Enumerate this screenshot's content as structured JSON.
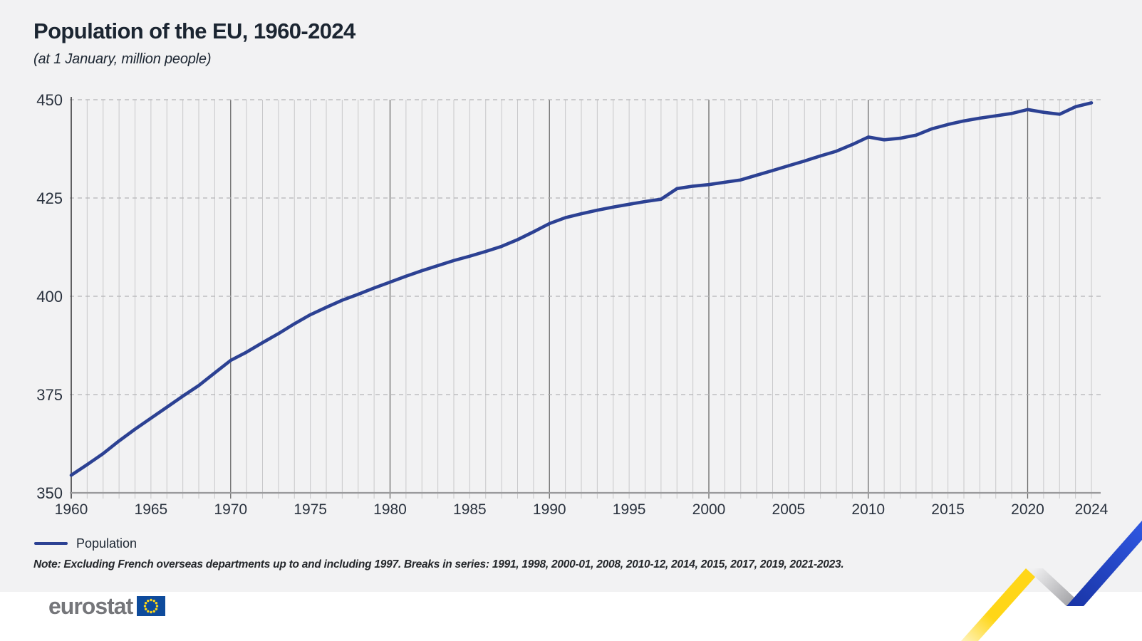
{
  "header": {
    "title": "Population of the EU, 1960-2024",
    "subtitle": "(at 1 January, million people)"
  },
  "legend": {
    "label": "Population"
  },
  "note": "Note: Excluding French overseas departments up to and including 1997. Breaks in series: 1991, 1998, 2000-01, 2008, 2010-12, 2014, 2015, 2017, 2019, 2021-2023.",
  "footer": {
    "brand": "eurostat"
  },
  "colors": {
    "background": "#f2f2f3",
    "line_blue": "#2c4193",
    "title_text": "#1b2531",
    "axis_text": "#2a323e",
    "grid_light": "#c8c8ca",
    "grid_decade": "#6b6b6b",
    "axis_line": "#3b3b3e",
    "baseline": "#9a9a9c",
    "dashed_grid": "#b4b4b6",
    "footer_background": "#ffffff",
    "brand_gray": "#75767a",
    "flag_blue": "#0e4b9c",
    "star_yellow": "#ffd617",
    "ribbon_yellow": "#ffd617",
    "ribbon_blue_dark": "#1a36a8",
    "ribbon_blue_bright": "#2e55de",
    "ribbon_gray": "#9d9da1"
  },
  "chart_data": {
    "type": "line",
    "title": "Population of the EU, 1960-2024",
    "subtitle": "(at 1 January, million people)",
    "xlabel": "",
    "ylabel": "million people",
    "ylim": [
      350,
      450
    ],
    "y_ticks": [
      350,
      375,
      400,
      425,
      450
    ],
    "x_tick_labels": [
      1960,
      1965,
      1970,
      1975,
      1980,
      1985,
      1990,
      1995,
      2000,
      2005,
      2010,
      2015,
      2020,
      2024
    ],
    "grid": {
      "vertical": "every year, decades darker",
      "horizontal": "dashed at y ticks",
      "legend_position": "bottom-left"
    },
    "series": [
      {
        "name": "Population",
        "color": "#2c4193",
        "x": [
          1960,
          1961,
          1962,
          1963,
          1964,
          1965,
          1966,
          1967,
          1968,
          1969,
          1970,
          1971,
          1972,
          1973,
          1974,
          1975,
          1976,
          1977,
          1978,
          1979,
          1980,
          1981,
          1982,
          1983,
          1984,
          1985,
          1986,
          1987,
          1988,
          1989,
          1990,
          1991,
          1992,
          1993,
          1994,
          1995,
          1996,
          1997,
          1998,
          1999,
          2000,
          2001,
          2002,
          2003,
          2004,
          2005,
          2006,
          2007,
          2008,
          2009,
          2010,
          2011,
          2012,
          2013,
          2014,
          2015,
          2016,
          2017,
          2018,
          2019,
          2020,
          2021,
          2022,
          2023,
          2024
        ],
        "values": [
          354.5,
          357.2,
          360.0,
          363.2,
          366.2,
          369.0,
          371.8,
          374.6,
          377.3,
          380.5,
          383.7,
          385.8,
          388.2,
          390.5,
          393.0,
          395.3,
          397.2,
          399.0,
          400.5,
          402.1,
          403.6,
          405.1,
          406.5,
          407.8,
          409.1,
          410.2,
          411.4,
          412.7,
          414.4,
          416.4,
          418.5,
          420.0,
          421.0,
          421.9,
          422.7,
          423.4,
          424.1,
          424.7,
          427.4,
          428.0,
          428.4,
          429.0,
          429.6,
          430.8,
          432.0,
          433.2,
          434.4,
          435.7,
          436.9,
          438.6,
          440.5,
          439.8,
          440.2,
          441.0,
          442.6,
          443.7,
          444.6,
          445.3,
          445.9,
          446.5,
          447.5,
          446.8,
          446.3,
          448.2,
          449.2
        ]
      }
    ]
  }
}
